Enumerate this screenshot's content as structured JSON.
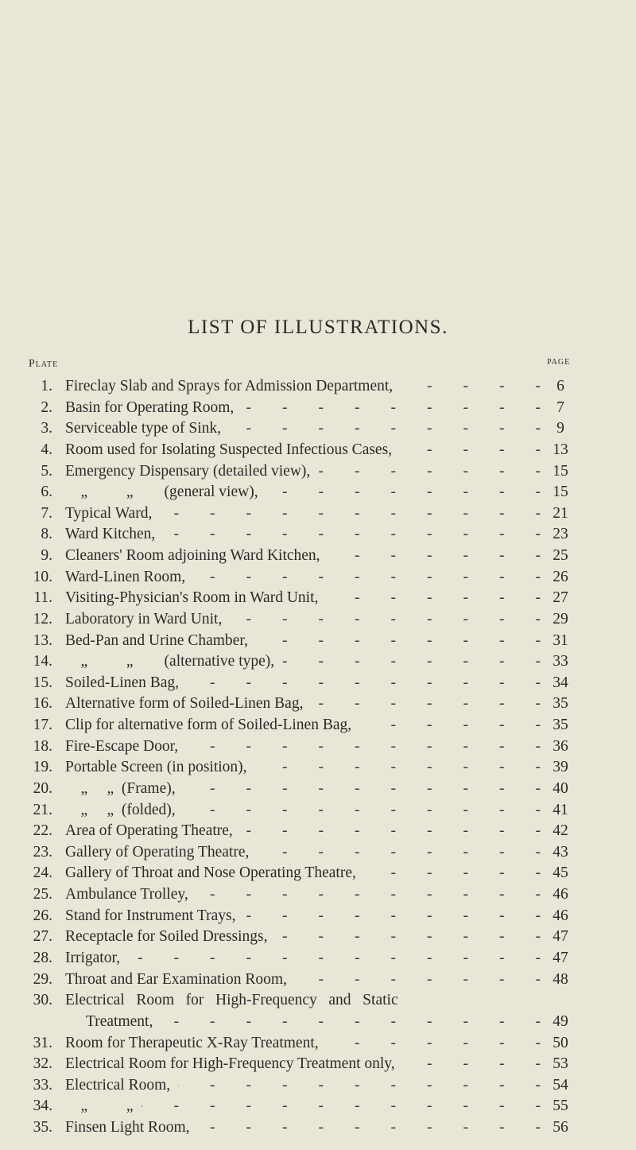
{
  "title": "LIST OF ILLUSTRATIONS.",
  "column_headers": {
    "plate": "Plate",
    "page": "PAGE"
  },
  "entries": [
    {
      "num": "1.",
      "text": "Fireclay Slab and Sprays for Admission Department,",
      "page": "6"
    },
    {
      "num": "2.",
      "text": "Basin for Operating Room,",
      "page": "7"
    },
    {
      "num": "3.",
      "text": "Serviceable type of Sink,",
      "page": "9"
    },
    {
      "num": "4.",
      "text": "Room used for Isolating Suspected Infectious Cases,",
      "page": "13"
    },
    {
      "num": "5.",
      "text": "Emergency Dispensary (detailed view),",
      "page": "15"
    },
    {
      "num": "6.",
      "text": "    „          „        (general view),",
      "page": "15"
    },
    {
      "num": "7.",
      "text": "Typical Ward,",
      "page": "21"
    },
    {
      "num": "8.",
      "text": "Ward Kitchen,",
      "page": "23"
    },
    {
      "num": "9.",
      "text": "Cleaners' Room adjoining Ward Kitchen,",
      "page": "25"
    },
    {
      "num": "10.",
      "text": "Ward-Linen Room,",
      "page": "26"
    },
    {
      "num": "11.",
      "text": "Visiting-Physician's Room in Ward Unit,",
      "page": "27"
    },
    {
      "num": "12.",
      "text": "Laboratory in Ward Unit,",
      "page": "29"
    },
    {
      "num": "13.",
      "text": "Bed-Pan and Urine Chamber,",
      "page": "31"
    },
    {
      "num": "14.",
      "text": "    „          „        (alternative type),",
      "page": "33"
    },
    {
      "num": "15.",
      "text": "Soiled-Linen Bag,",
      "page": "34"
    },
    {
      "num": "16.",
      "text": "Alternative form of Soiled-Linen Bag,",
      "page": "35"
    },
    {
      "num": "17.",
      "text": "Clip for alternative form of Soiled-Linen Bag,",
      "page": "35"
    },
    {
      "num": "18.",
      "text": "Fire-Escape Door,",
      "page": "36"
    },
    {
      "num": "19.",
      "text": "Portable Screen (in position),",
      "page": "39"
    },
    {
      "num": "20.",
      "text": "    „     „  (Frame),",
      "page": "40"
    },
    {
      "num": "21.",
      "text": "    „     „  (folded),",
      "page": "41"
    },
    {
      "num": "22.",
      "text": "Area of Operating Theatre,",
      "page": "42"
    },
    {
      "num": "23.",
      "text": "Gallery of Operating Theatre,",
      "page": "43"
    },
    {
      "num": "24.",
      "text": "Gallery of Throat and Nose Operating Theatre,",
      "page": "45"
    },
    {
      "num": "25.",
      "text": "Ambulance Trolley,",
      "page": "46"
    },
    {
      "num": "26.",
      "text": "Stand for Instrument Trays,",
      "page": "46"
    },
    {
      "num": "27.",
      "text": "Receptacle for Soiled Dressings,",
      "page": "47"
    },
    {
      "num": "28.",
      "text": "Irrigator,",
      "page": "47"
    },
    {
      "num": "29.",
      "text": "Throat and Ear Examination Room,",
      "page": "48"
    },
    {
      "num": "30.",
      "text": "Electrical   Room   for   High-Frequency   and   Static",
      "page": ""
    },
    {
      "num": "",
      "text": "Treatment,",
      "page": "49",
      "indent": true
    },
    {
      "num": "31.",
      "text": "Room for Therapeutic X-Ray Treatment,",
      "page": "50"
    },
    {
      "num": "32.",
      "text": "Electrical Room for High-Frequency Treatment only,",
      "page": "53"
    },
    {
      "num": "33.",
      "text": "Electrical Room,",
      "page": "54"
    },
    {
      "num": "34.",
      "text": "    „          „",
      "page": "55"
    },
    {
      "num": "35.",
      "text": "Finsen Light Room,",
      "page": "56"
    }
  ]
}
